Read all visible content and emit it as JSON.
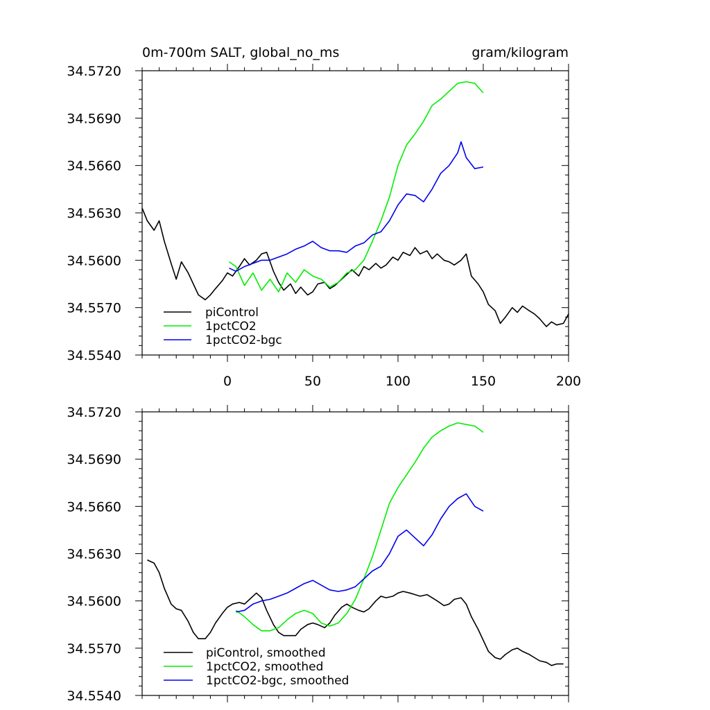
{
  "chart_data": [
    {
      "type": "line",
      "title_left": "0m-700m SALT, global_no_ms",
      "title_right": "gram/kilogram",
      "xlabel": "",
      "ylabel": "",
      "xlim": [
        -50,
        200
      ],
      "ylim": [
        34.554,
        34.572
      ],
      "xticks": [
        0,
        50,
        100,
        150,
        200
      ],
      "xtick_labels": [
        "0",
        "50",
        "100",
        "150",
        "200"
      ],
      "yticks": [
        34.554,
        34.557,
        34.56,
        34.563,
        34.566,
        34.569,
        34.572
      ],
      "ytick_labels": [
        "34.5540",
        "34.5570",
        "34.5600",
        "34.5630",
        "34.5660",
        "34.5690",
        "34.5720"
      ],
      "legend_position": "bottom-left",
      "series": [
        {
          "name": "piControl",
          "color": "#000000",
          "x": [
            -50,
            -47,
            -43,
            -40,
            -37,
            -33,
            -30,
            -27,
            -23,
            -20,
            -17,
            -13,
            -10,
            -7,
            -3,
            0,
            3,
            7,
            10,
            13,
            17,
            20,
            23,
            27,
            30,
            33,
            37,
            40,
            43,
            47,
            50,
            53,
            57,
            60,
            63,
            67,
            70,
            73,
            77,
            80,
            83,
            87,
            90,
            93,
            97,
            100,
            103,
            107,
            110,
            113,
            117,
            120,
            123,
            127,
            130,
            133,
            137,
            140,
            143,
            147,
            150,
            153,
            157,
            160,
            163,
            167,
            170,
            173,
            177,
            180,
            183,
            187,
            190,
            193,
            197,
            200
          ],
          "values": [
            34.5633,
            34.5625,
            34.5619,
            34.5625,
            34.5612,
            34.5598,
            34.5588,
            34.5599,
            34.5592,
            34.5585,
            34.5578,
            34.5575,
            34.5578,
            34.5582,
            34.5587,
            34.5592,
            34.559,
            34.5596,
            34.5601,
            34.5597,
            34.56,
            34.5604,
            34.5605,
            34.5593,
            34.5586,
            34.5581,
            34.5585,
            34.5579,
            34.5583,
            34.5578,
            34.558,
            34.5585,
            34.5586,
            34.5582,
            34.5584,
            34.5588,
            34.5591,
            34.5594,
            34.559,
            34.5596,
            34.5594,
            34.5598,
            34.5595,
            34.5597,
            34.5602,
            34.56,
            34.5605,
            34.5603,
            34.5608,
            34.5604,
            34.5606,
            34.5601,
            34.5604,
            34.56,
            34.5599,
            34.5597,
            34.56,
            34.5604,
            34.559,
            34.5585,
            34.558,
            34.5572,
            34.5568,
            34.556,
            34.5564,
            34.557,
            34.5567,
            34.5571,
            34.5568,
            34.5566,
            34.5563,
            34.5558,
            34.5561,
            34.5559,
            34.556,
            34.5566
          ]
        },
        {
          "name": "1pctCO2",
          "color": "#00ee00",
          "x": [
            1,
            5,
            10,
            15,
            20,
            25,
            30,
            35,
            40,
            45,
            50,
            55,
            60,
            65,
            70,
            75,
            80,
            85,
            90,
            95,
            100,
            105,
            110,
            115,
            120,
            125,
            130,
            135,
            140,
            145,
            150
          ],
          "values": [
            34.5599,
            34.5596,
            34.5584,
            34.5592,
            34.5581,
            34.5588,
            34.558,
            34.5592,
            34.5586,
            34.5594,
            34.559,
            34.5588,
            34.5583,
            34.5586,
            34.5592,
            34.5594,
            34.56,
            34.5612,
            34.5625,
            34.564,
            34.566,
            34.5673,
            34.568,
            34.5688,
            34.5698,
            34.5702,
            34.5707,
            34.5712,
            34.5713,
            34.5712,
            34.5706
          ]
        },
        {
          "name": "1pctCO2-bgc",
          "color": "#0000ee",
          "x": [
            1,
            5,
            10,
            15,
            20,
            25,
            30,
            35,
            40,
            45,
            50,
            55,
            60,
            65,
            70,
            75,
            80,
            85,
            90,
            95,
            100,
            105,
            110,
            115,
            120,
            125,
            130,
            135,
            137,
            140,
            145,
            150
          ],
          "values": [
            34.5595,
            34.5593,
            34.5596,
            34.5598,
            34.56,
            34.56,
            34.5602,
            34.5604,
            34.5607,
            34.5609,
            34.5612,
            34.5608,
            34.5606,
            34.5606,
            34.5605,
            34.5609,
            34.5611,
            34.5616,
            34.5618,
            34.5625,
            34.5635,
            34.5642,
            34.5641,
            34.5637,
            34.5645,
            34.5655,
            34.566,
            34.5668,
            34.5675,
            34.5665,
            34.5658,
            34.5659
          ]
        }
      ]
    },
    {
      "type": "line",
      "title_left": "",
      "title_right": "",
      "xlabel": "",
      "ylabel": "",
      "xlim": [
        -50,
        200
      ],
      "ylim": [
        34.554,
        34.572
      ],
      "xticks": [
        0,
        50,
        100,
        150,
        200
      ],
      "xtick_labels": [],
      "yticks": [
        34.554,
        34.557,
        34.56,
        34.563,
        34.566,
        34.569,
        34.572
      ],
      "ytick_labels": [
        "34.5540",
        "34.5570",
        "34.5600",
        "34.5630",
        "34.5660",
        "34.5690",
        "34.5720"
      ],
      "legend_position": "bottom-left",
      "series": [
        {
          "name": "piControl, smoothed",
          "color": "#000000",
          "x": [
            -47,
            -43,
            -40,
            -37,
            -33,
            -30,
            -27,
            -23,
            -20,
            -17,
            -13,
            -10,
            -7,
            -3,
            0,
            3,
            7,
            10,
            13,
            17,
            20,
            23,
            27,
            30,
            33,
            37,
            40,
            43,
            47,
            50,
            53,
            57,
            60,
            63,
            67,
            70,
            73,
            77,
            80,
            83,
            87,
            90,
            93,
            97,
            100,
            103,
            107,
            110,
            113,
            117,
            120,
            123,
            127,
            130,
            133,
            137,
            140,
            143,
            147,
            150,
            153,
            157,
            160,
            163,
            167,
            170,
            173,
            177,
            180,
            183,
            187,
            190,
            193,
            197
          ],
          "values": [
            34.5626,
            34.5624,
            34.5618,
            34.5608,
            34.5598,
            34.5595,
            34.5594,
            34.5587,
            34.558,
            34.5576,
            34.5576,
            34.558,
            34.5586,
            34.5592,
            34.5596,
            34.5598,
            34.5599,
            34.5598,
            34.5601,
            34.5605,
            34.5602,
            34.5594,
            34.5585,
            34.558,
            34.5578,
            34.5578,
            34.5578,
            34.5582,
            34.5585,
            34.5586,
            34.5585,
            34.5583,
            34.5586,
            34.5591,
            34.5596,
            34.5598,
            34.5596,
            34.5594,
            34.5593,
            34.5595,
            34.56,
            34.5603,
            34.5602,
            34.5603,
            34.5605,
            34.5606,
            34.5605,
            34.5604,
            34.5603,
            34.5604,
            34.5602,
            34.56,
            34.5597,
            34.5598,
            34.5601,
            34.5602,
            34.5598,
            34.559,
            34.5582,
            34.5575,
            34.5568,
            34.5564,
            34.5563,
            34.5566,
            34.5569,
            34.557,
            34.5568,
            34.5566,
            34.5564,
            34.5562,
            34.5561,
            34.5559,
            34.556,
            34.556
          ]
        },
        {
          "name": "1pctCO2, smoothed",
          "color": "#00ee00",
          "x": [
            5,
            10,
            15,
            20,
            25,
            30,
            35,
            40,
            45,
            50,
            55,
            60,
            65,
            70,
            75,
            80,
            85,
            90,
            95,
            100,
            105,
            110,
            115,
            120,
            125,
            130,
            135,
            140,
            145,
            150
          ],
          "values": [
            34.5594,
            34.559,
            34.5585,
            34.5581,
            34.5581,
            34.5583,
            34.5588,
            34.5592,
            34.5594,
            34.5592,
            34.5586,
            34.5584,
            34.5586,
            34.5592,
            34.5601,
            34.5614,
            34.5628,
            34.5645,
            34.5662,
            34.5672,
            34.568,
            34.5688,
            34.5697,
            34.5704,
            34.5708,
            34.5711,
            34.5713,
            34.5712,
            34.5711,
            34.5707
          ]
        },
        {
          "name": "1pctCO2-bgc, smoothed",
          "color": "#0000ee",
          "x": [
            5,
            10,
            15,
            20,
            25,
            30,
            35,
            40,
            45,
            50,
            55,
            60,
            65,
            70,
            75,
            80,
            85,
            90,
            95,
            100,
            105,
            110,
            115,
            120,
            125,
            130,
            135,
            140,
            145,
            150
          ],
          "values": [
            34.5593,
            34.5594,
            34.5598,
            34.56,
            34.5601,
            34.5603,
            34.5605,
            34.5608,
            34.5611,
            34.5613,
            34.561,
            34.5607,
            34.5606,
            34.5607,
            34.5609,
            34.5614,
            34.5619,
            34.5622,
            34.563,
            34.5641,
            34.5645,
            34.564,
            34.5635,
            34.5642,
            34.5652,
            34.566,
            34.5665,
            34.5668,
            34.566,
            34.5657
          ]
        }
      ]
    }
  ]
}
